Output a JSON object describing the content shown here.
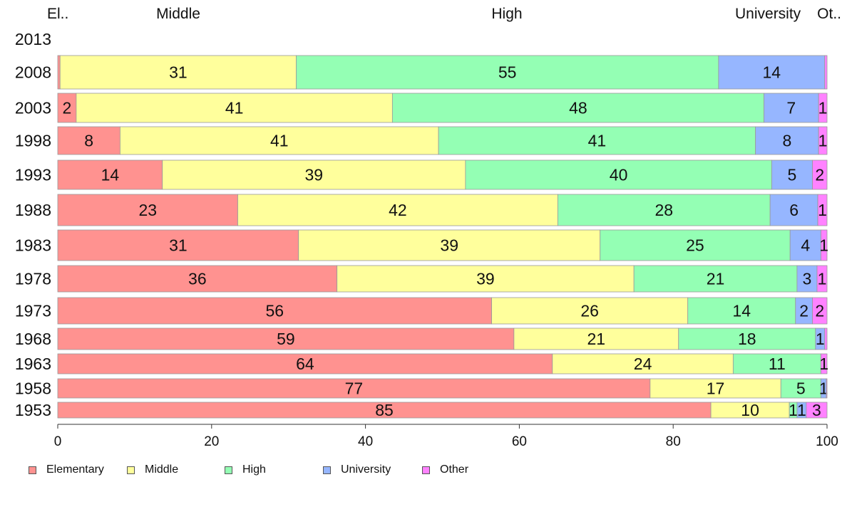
{
  "chart_data": {
    "type": "bar",
    "orientation": "horizontal",
    "stacked": true,
    "categories": [
      "2013",
      "2008",
      "2003",
      "1998",
      "1993",
      "1988",
      "1983",
      "1978",
      "1973",
      "1968",
      "1963",
      "1958",
      "1953"
    ],
    "series": [
      {
        "name": "Elementary",
        "color": "#ff9290",
        "values": [
          0,
          0.3,
          2.4,
          8.1,
          13.6,
          23.4,
          31.3,
          36.3,
          56.4,
          59.3,
          64.3,
          77.0,
          84.9
        ]
      },
      {
        "name": "Middle",
        "color": "#ffff9c",
        "values": [
          0,
          30.7,
          41.1,
          41.4,
          39.4,
          41.6,
          39.2,
          38.6,
          25.5,
          21.4,
          23.5,
          17.0,
          10.2
        ]
      },
      {
        "name": "High",
        "color": "#94ffb4",
        "values": [
          0,
          54.9,
          48.3,
          41.2,
          39.8,
          27.6,
          24.7,
          21.2,
          14.0,
          17.8,
          11.4,
          5.2,
          1.0
        ]
      },
      {
        "name": "University",
        "color": "#96b6ff",
        "values": [
          0,
          13.8,
          7.1,
          8.2,
          5.3,
          6.2,
          4.0,
          2.6,
          2.2,
          1.2,
          0.0,
          0.7,
          1.2
        ]
      },
      {
        "name": "Other",
        "color": "#ff82ff",
        "values": [
          0,
          0.3,
          1.1,
          1.1,
          1.9,
          1.2,
          0.8,
          1.3,
          1.9,
          0.3,
          0.8,
          0.1,
          2.7
        ]
      }
    ],
    "data_labels": [
      [],
      [
        "",
        "31",
        "55",
        "14",
        ""
      ],
      [
        "2",
        "41",
        "48",
        "7",
        "1"
      ],
      [
        "8",
        "41",
        "41",
        "8",
        "1"
      ],
      [
        "14",
        "39",
        "40",
        "5",
        "2"
      ],
      [
        "23",
        "42",
        "28",
        "6",
        "1"
      ],
      [
        "31",
        "39",
        "25",
        "4",
        "1"
      ],
      [
        "36",
        "39",
        "21",
        "3",
        "1"
      ],
      [
        "56",
        "26",
        "14",
        "2",
        "2"
      ],
      [
        "59",
        "21",
        "18",
        "1",
        ""
      ],
      [
        "64",
        "24",
        "11",
        "",
        "1"
      ],
      [
        "77",
        "17",
        "5",
        "1",
        ""
      ],
      [
        "85",
        "10",
        "1",
        "1",
        "3"
      ]
    ],
    "top_labels": [
      "El..",
      "Middle",
      "High",
      "University",
      "Ot.."
    ],
    "x_ticks": [
      0,
      20,
      40,
      60,
      80,
      100
    ],
    "xlim": [
      0,
      100
    ],
    "legend_position": "bottom-left",
    "grid": false
  }
}
